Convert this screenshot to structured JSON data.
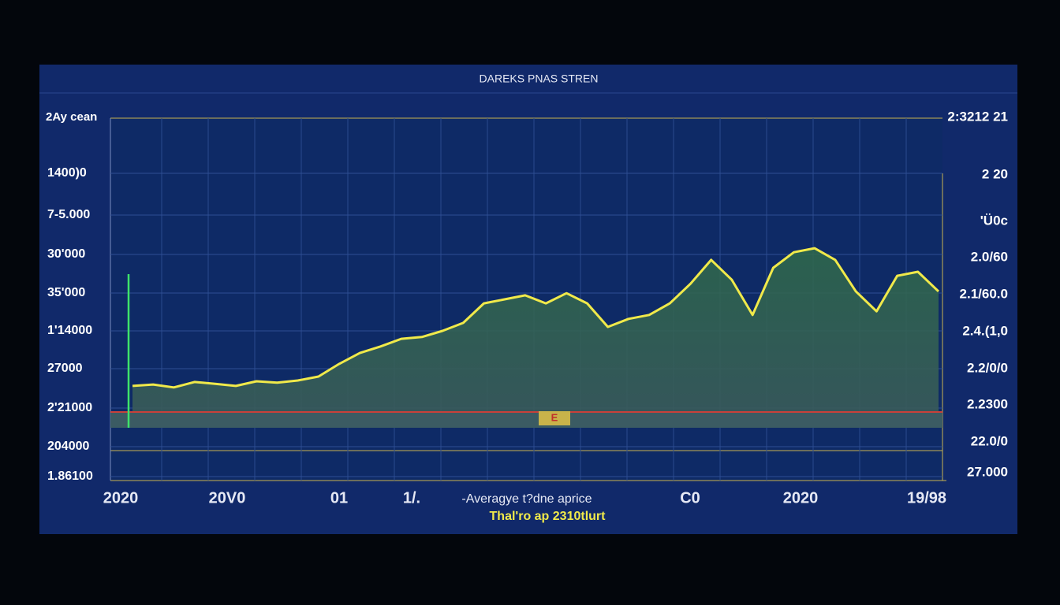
{
  "chart_data": {
    "type": "line",
    "title": "DAREKS PNAS STREN",
    "ylabel": "2Ay cean",
    "y_labels_left": [
      "1400)0",
      "7-5.000",
      "30'000",
      "35'000",
      "1'14000",
      "27000",
      "2'21000",
      "204000",
      "1.86100"
    ],
    "y_labels_right": [
      "2:3212 21",
      "2 20",
      "'Ü0c",
      "2.0/60",
      "2.1/60.0",
      "2.4.(1,0",
      "2.2/0/0",
      "2.2300",
      "22.0/0",
      "27.000"
    ],
    "x_labels": [
      "2020",
      "20V0",
      "01",
      "1/.",
      "C0",
      "2020",
      "19/98"
    ],
    "marker_label": "E",
    "legend": [
      "Thal'ro ap 2310tlurt"
    ],
    "ylim": [
      0,
      100
    ],
    "series": [
      {
        "name": "-Averagye t?dne aprice",
        "color": "#f0e94a",
        "values": [
          26.1,
          26.5,
          25.7,
          27.2,
          26.7,
          26.1,
          27.4,
          27,
          27.6,
          28.7,
          32.2,
          35.2,
          37,
          39.1,
          39.6,
          41.3,
          43.5,
          48.9,
          50,
          51.1,
          48.9,
          51.7,
          48.9,
          42.4,
          44.6,
          45.7,
          48.9,
          54.3,
          60.9,
          55.4,
          45.7,
          58.7,
          63,
          64.1,
          60.9,
          52.2,
          46.7,
          56.5,
          57.6,
          52.2
        ]
      }
    ]
  }
}
